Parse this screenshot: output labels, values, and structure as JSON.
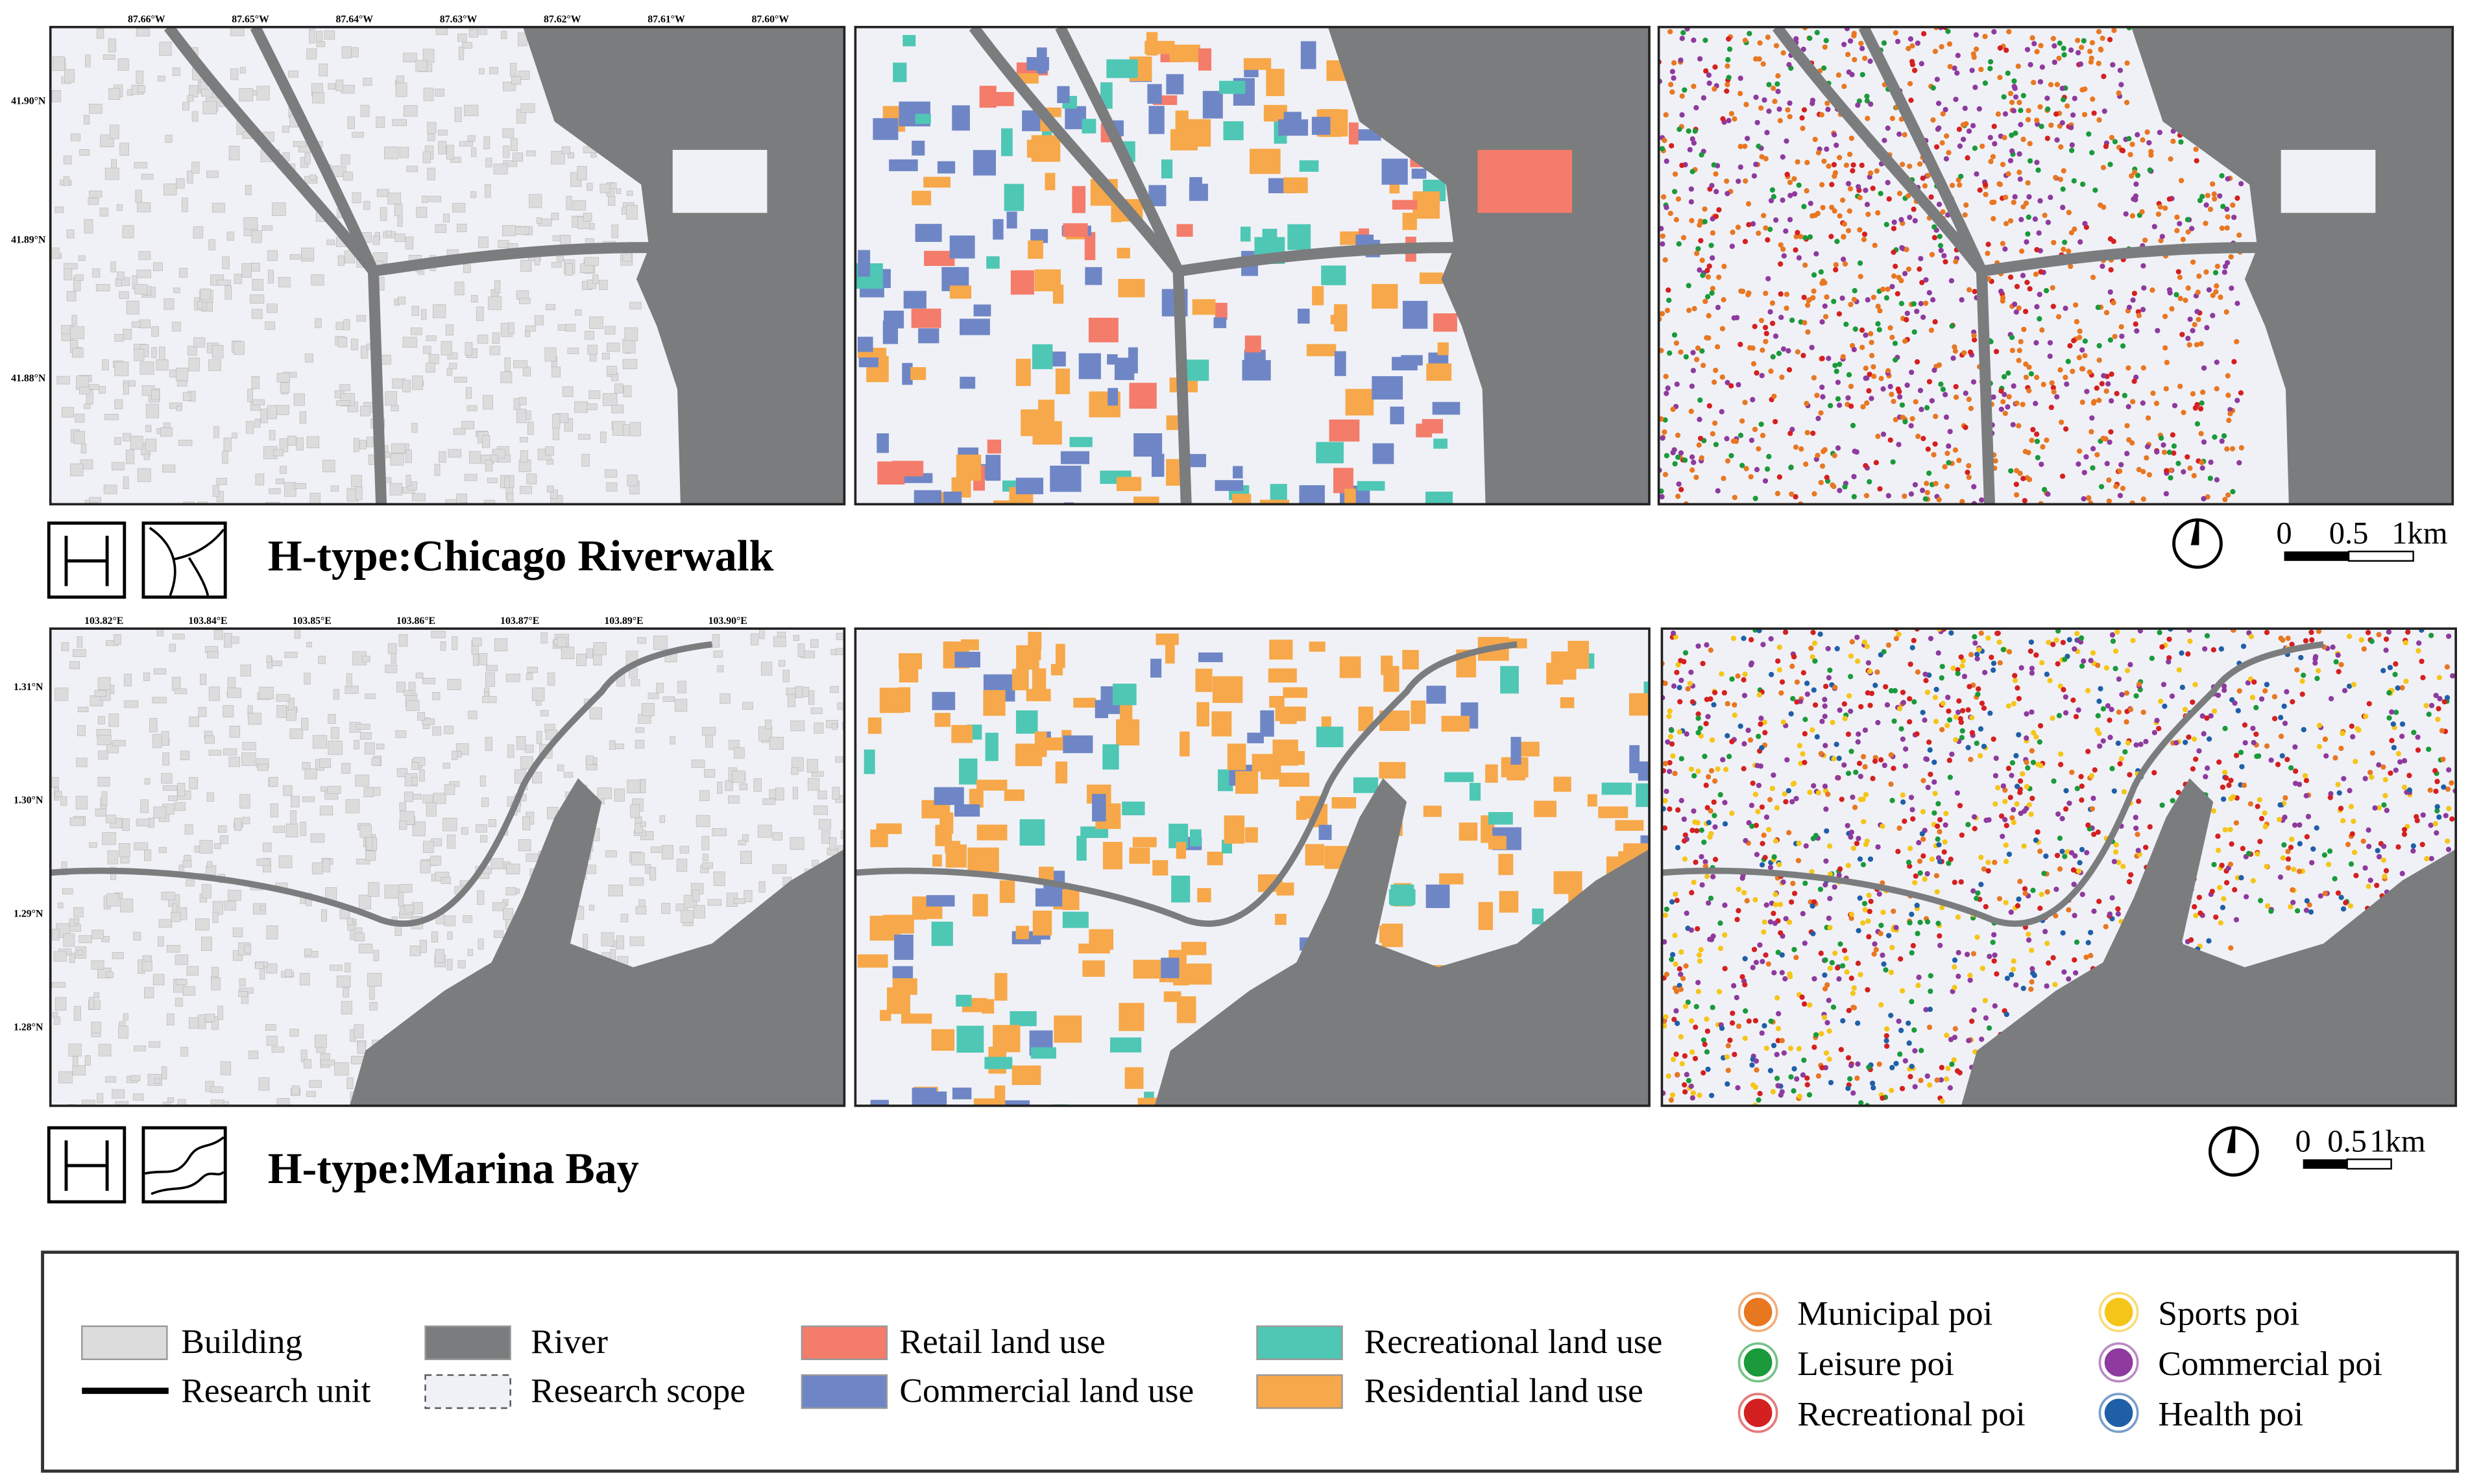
{
  "panels": [
    {
      "title": "H-type:Chicago Riverwalk",
      "lon_labels": [
        "87.66°W",
        "87.65°W",
        "87.64°W",
        "87.63°W",
        "87.62°W",
        "87.61°W",
        "87.60°W"
      ],
      "lat_labels": [
        "41.90°N",
        "41.89°N",
        "41.88°N"
      ],
      "scale_labels": [
        "0",
        "0.5",
        "1km"
      ]
    },
    {
      "title": "H-type:Marina Bay",
      "lon_labels": [
        "103.82°E",
        "103.84°E",
        "103.85°E",
        "103.86°E",
        "103.87°E",
        "103.89°E",
        "103.90°E"
      ],
      "lat_labels": [
        "1.31°N",
        "1.30°N",
        "1.29°N",
        "1.28°N"
      ],
      "scale_labels": [
        "0",
        "0.5",
        "1km"
      ]
    }
  ],
  "legend": {
    "base": [
      {
        "label": "Building",
        "color": "#dcdcdc"
      },
      {
        "label": "Research unit",
        "color": "#000000"
      },
      {
        "label": "River",
        "color": "#7a7c7e"
      },
      {
        "label": "Research scope",
        "color": "#f0f1f6"
      }
    ],
    "land_use": [
      {
        "label": "Retail land use",
        "color": "#f47c6a"
      },
      {
        "label": "Commercial land use",
        "color": "#6f86c6"
      },
      {
        "label": "Recreational land use",
        "color": "#4fc7b5"
      },
      {
        "label": "Residential land use",
        "color": "#f7a84a"
      }
    ],
    "poi": [
      {
        "label": "Municipal poi",
        "color": "#e87722"
      },
      {
        "label": "Leisure poi",
        "color": "#1a9a3a"
      },
      {
        "label": "Recreational poi",
        "color": "#d42020"
      },
      {
        "label": "Sports poi",
        "color": "#f5c518"
      },
      {
        "label": "Commercial poi",
        "color": "#8e3a9e"
      },
      {
        "label": "Health poi",
        "color": "#1f5fa8"
      }
    ]
  }
}
